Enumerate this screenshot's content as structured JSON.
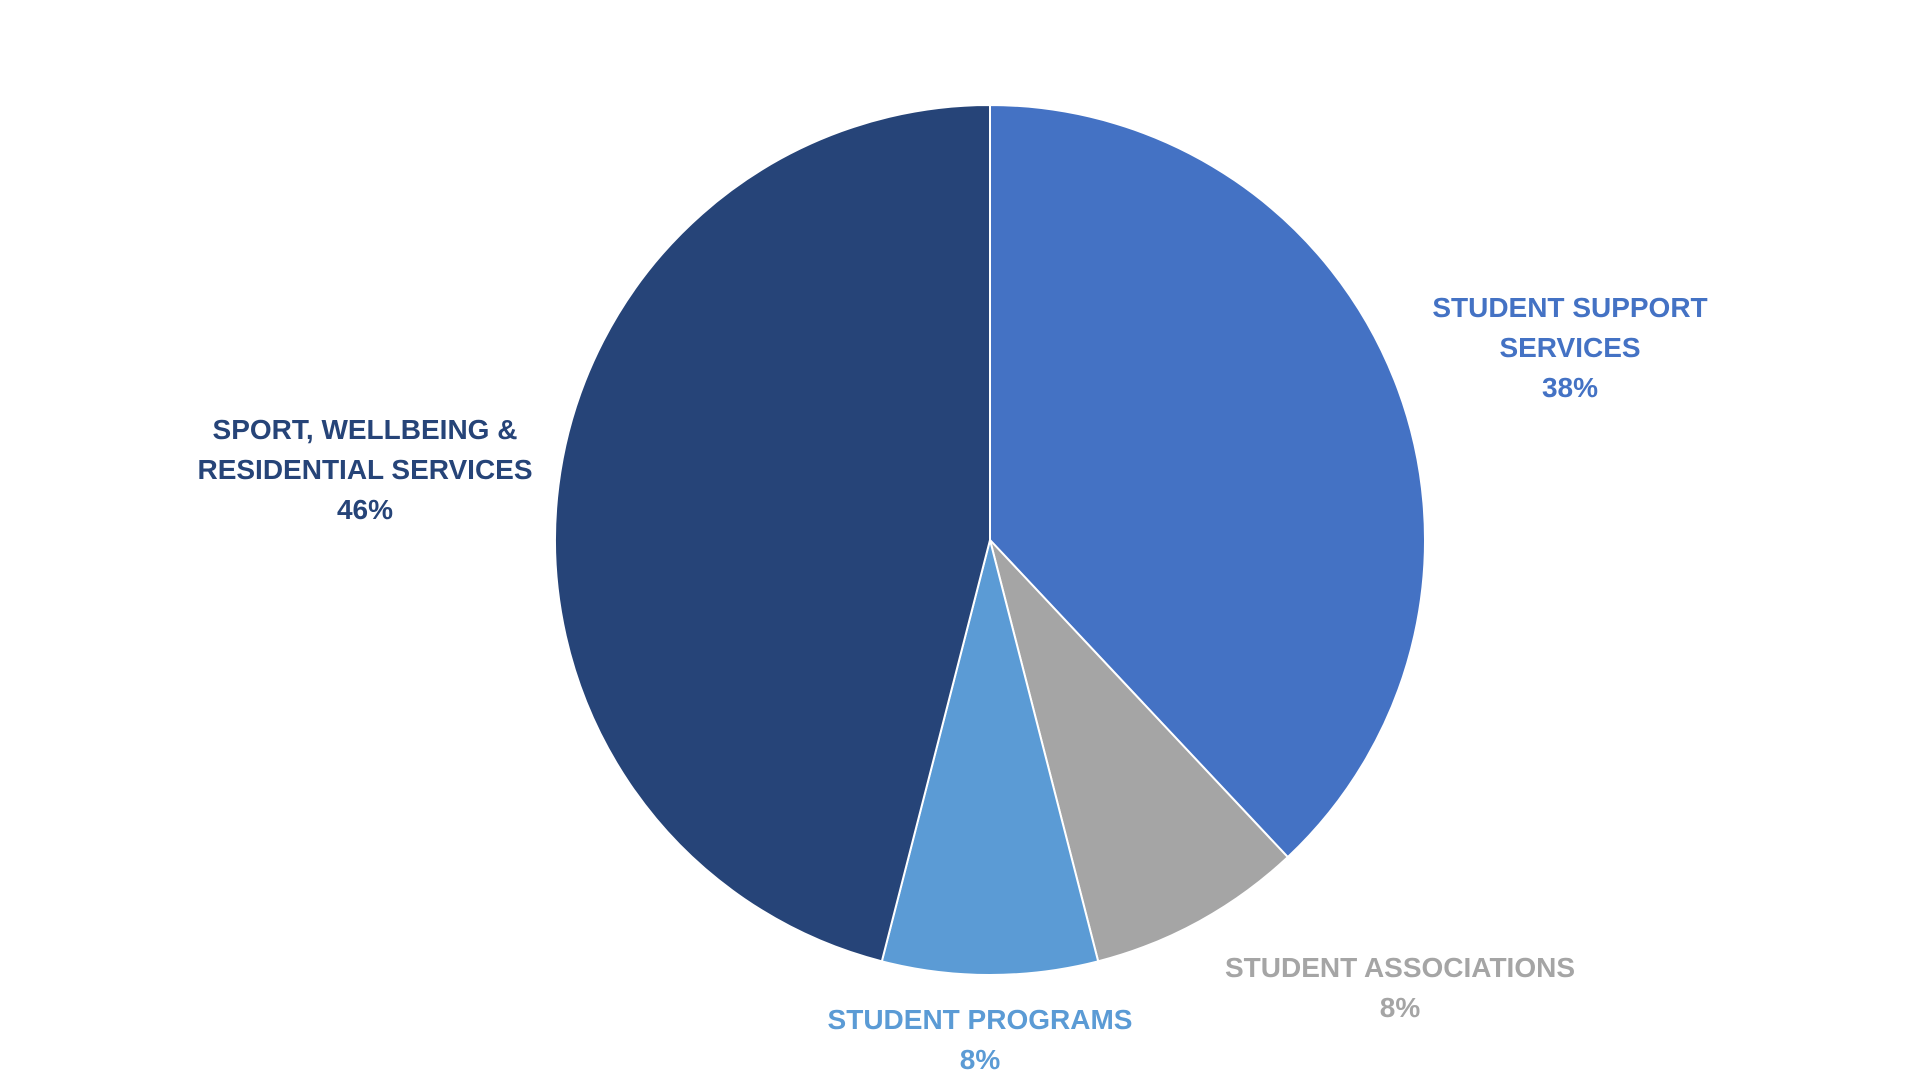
{
  "chart_data": {
    "type": "pie",
    "title": "",
    "start_angle_deg": 0,
    "direction": "clockwise",
    "slices": [
      {
        "label_lines": [
          "STUDENT SUPPORT",
          "SERVICES"
        ],
        "pct_label": "38%",
        "value": 38,
        "color": "#4472C4"
      },
      {
        "label_lines": [
          "STUDENT ASSOCIATIONS"
        ],
        "pct_label": "8%",
        "value": 8,
        "color": "#A5A5A5"
      },
      {
        "label_lines": [
          "STUDENT PROGRAMS"
        ],
        "pct_label": "8%",
        "value": 8,
        "color": "#5B9BD5"
      },
      {
        "label_lines": [
          "SPORT, WELLBEING &",
          "RESIDENTIAL SERVICES"
        ],
        "pct_label": "46%",
        "value": 46,
        "color": "#264478"
      }
    ]
  }
}
